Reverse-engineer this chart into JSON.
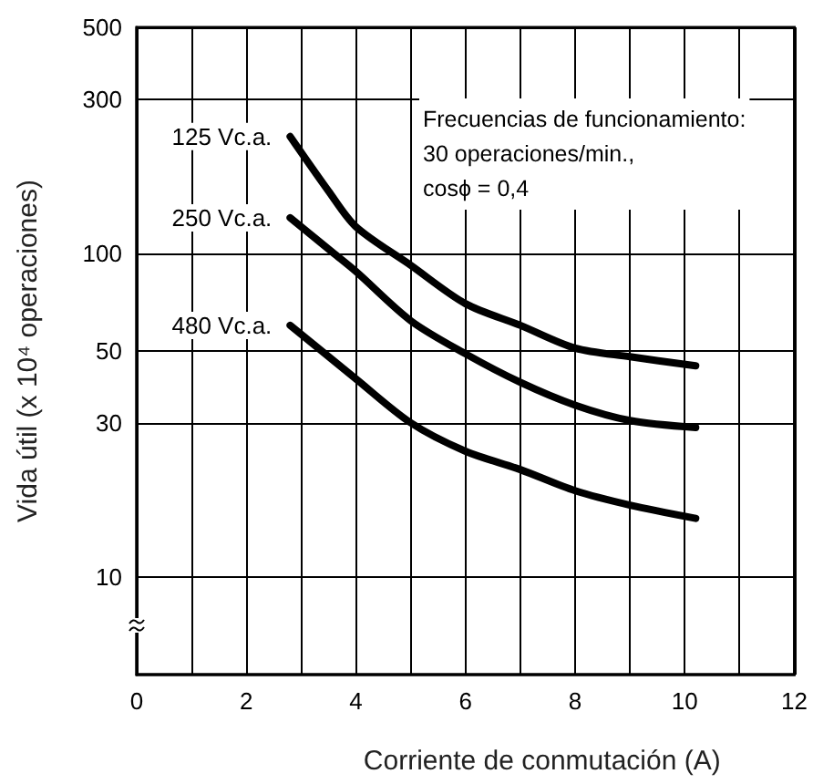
{
  "chart_data": {
    "type": "line",
    "xlabel": "Corriente de conmutación (A)",
    "ylabel": "Vida útil (x 10⁴ operaciones)",
    "log": "y",
    "grid": true,
    "legend": false,
    "marker": "none",
    "line_style": "solid",
    "xlim": [
      0,
      12
    ],
    "xticks": [
      0,
      {
        "value": 1,
        "label": null
      },
      2,
      {
        "value": 3,
        "label": null
      },
      4,
      {
        "value": 5,
        "label": null
      },
      6,
      {
        "value": 7,
        "label": null
      },
      8,
      {
        "value": 9,
        "label": null
      },
      10,
      {
        "value": 11,
        "label": null
      },
      12
    ],
    "ylim": [
      5,
      500
    ],
    "yticks": [
      10,
      30,
      50,
      100,
      300,
      500
    ],
    "annotations": [
      "Frecuencias de funcionamiento:",
      "30 operaciones/min.,",
      "cosϕ = 0,4"
    ],
    "series": [
      {
        "name": "125 Vc.a.",
        "color": "#000000",
        "x": [
          2.8,
          3.5,
          4,
          5,
          6,
          7,
          8,
          9,
          10.2
        ],
        "values": [
          230,
          156,
          121,
          92,
          70,
          60,
          51,
          48,
          45
        ]
      },
      {
        "name": "250 Vc.a.",
        "color": "#000000",
        "x": [
          2.8,
          3.6,
          4,
          5,
          6,
          7,
          8,
          9,
          10.2
        ],
        "values": [
          129,
          100,
          88,
          62,
          49,
          40,
          34,
          30.5,
          29
        ]
      },
      {
        "name": "480 Vc.a.",
        "color": "#000000",
        "x": [
          2.8,
          4,
          5,
          6,
          7,
          8,
          9,
          10.2
        ],
        "values": [
          60,
          41,
          30,
          24.5,
          21.5,
          18.5,
          16.7,
          15.2
        ]
      }
    ]
  }
}
